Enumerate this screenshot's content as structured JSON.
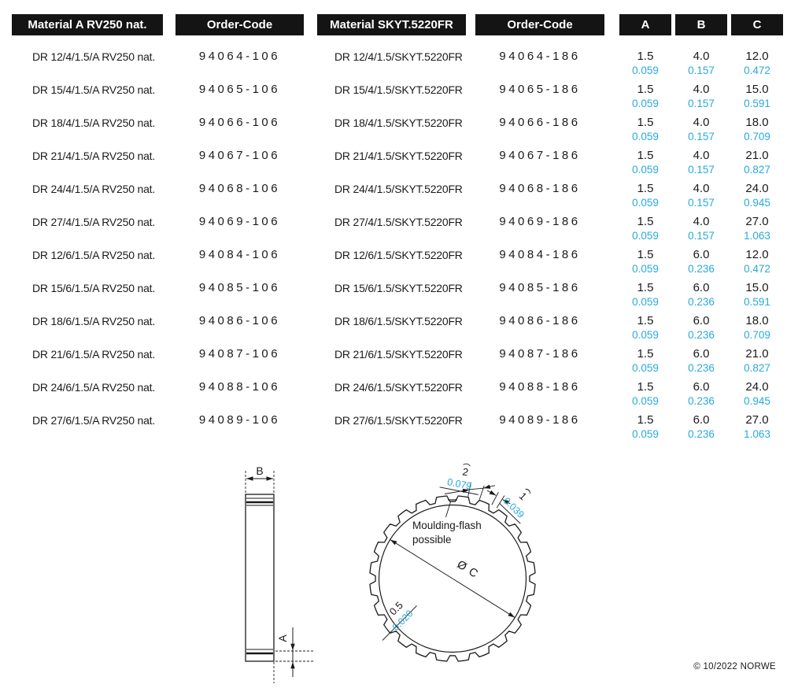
{
  "colors": {
    "accent_blue": "#29A9E0",
    "header_bg": "#141414",
    "ink": "#1A1A1A"
  },
  "table": {
    "headers": {
      "material_a": "Material A RV250 nat.",
      "order_code_a": "Order-Code",
      "material_b": "Material SKYT.5220FR",
      "order_code_b": "Order-Code",
      "dim_a": "A",
      "dim_b": "B",
      "dim_c": "C"
    },
    "rows": [
      {
        "material_a": "DR 12/4/1.5/A RV250 nat.",
        "order_a": "94064-106",
        "material_b": "DR 12/4/1.5/SKYT.5220FR",
        "order_b": "94064-186",
        "a_mm": "1.5",
        "a_in": "0.059",
        "b_mm": "4.0",
        "b_in": "0.157",
        "c_mm": "12.0",
        "c_in": "0.472"
      },
      {
        "material_a": "DR 15/4/1.5/A RV250 nat.",
        "order_a": "94065-106",
        "material_b": "DR 15/4/1.5/SKYT.5220FR",
        "order_b": "94065-186",
        "a_mm": "1.5",
        "a_in": "0.059",
        "b_mm": "4.0",
        "b_in": "0.157",
        "c_mm": "15.0",
        "c_in": "0.591"
      },
      {
        "material_a": "DR 18/4/1.5/A RV250 nat.",
        "order_a": "94066-106",
        "material_b": "DR 18/4/1.5/SKYT.5220FR",
        "order_b": "94066-186",
        "a_mm": "1.5",
        "a_in": "0.059",
        "b_mm": "4.0",
        "b_in": "0.157",
        "c_mm": "18.0",
        "c_in": "0.709"
      },
      {
        "material_a": "DR 21/4/1.5/A RV250 nat.",
        "order_a": "94067-106",
        "material_b": "DR 21/4/1.5/SKYT.5220FR",
        "order_b": "94067-186",
        "a_mm": "1.5",
        "a_in": "0.059",
        "b_mm": "4.0",
        "b_in": "0.157",
        "c_mm": "21.0",
        "c_in": "0.827"
      },
      {
        "material_a": "DR 24/4/1.5/A RV250 nat.",
        "order_a": "94068-106",
        "material_b": "DR 24/4/1.5/SKYT.5220FR",
        "order_b": "94068-186",
        "a_mm": "1.5",
        "a_in": "0.059",
        "b_mm": "4.0",
        "b_in": "0.157",
        "c_mm": "24.0",
        "c_in": "0.945"
      },
      {
        "material_a": "DR 27/4/1.5/A RV250 nat.",
        "order_a": "94069-106",
        "material_b": "DR 27/4/1.5/SKYT.5220FR",
        "order_b": "94069-186",
        "a_mm": "1.5",
        "a_in": "0.059",
        "b_mm": "4.0",
        "b_in": "0.157",
        "c_mm": "27.0",
        "c_in": "1.063"
      },
      {
        "material_a": "DR 12/6/1.5/A RV250 nat.",
        "order_a": "94084-106",
        "material_b": "DR 12/6/1.5/SKYT.5220FR",
        "order_b": "94084-186",
        "a_mm": "1.5",
        "a_in": "0.059",
        "b_mm": "6.0",
        "b_in": "0.236",
        "c_mm": "12.0",
        "c_in": "0.472"
      },
      {
        "material_a": "DR 15/6/1.5/A RV250 nat.",
        "order_a": "94085-106",
        "material_b": "DR 15/6/1.5/SKYT.5220FR",
        "order_b": "94085-186",
        "a_mm": "1.5",
        "a_in": "0.059",
        "b_mm": "6.0",
        "b_in": "0.236",
        "c_mm": "15.0",
        "c_in": "0.591"
      },
      {
        "material_a": "DR 18/6/1.5/A RV250 nat.",
        "order_a": "94086-106",
        "material_b": "DR 18/6/1.5/SKYT.5220FR",
        "order_b": "94086-186",
        "a_mm": "1.5",
        "a_in": "0.059",
        "b_mm": "6.0",
        "b_in": "0.236",
        "c_mm": "18.0",
        "c_in": "0.709"
      },
      {
        "material_a": "DR 21/6/1.5/A RV250 nat.",
        "order_a": "94087-106",
        "material_b": "DR 21/6/1.5/SKYT.5220FR",
        "order_b": "94087-186",
        "a_mm": "1.5",
        "a_in": "0.059",
        "b_mm": "6.0",
        "b_in": "0.236",
        "c_mm": "21.0",
        "c_in": "0.827"
      },
      {
        "material_a": "DR 24/6/1.5/A RV250 nat.",
        "order_a": "94088-106",
        "material_b": "DR 24/6/1.5/SKYT.5220FR",
        "order_b": "94088-186",
        "a_mm": "1.5",
        "a_in": "0.059",
        "b_mm": "6.0",
        "b_in": "0.236",
        "c_mm": "24.0",
        "c_in": "0.945"
      },
      {
        "material_a": "DR 27/6/1.5/A RV250 nat.",
        "order_a": "94089-106",
        "material_b": "DR 27/6/1.5/SKYT.5220FR",
        "order_b": "94089-186",
        "a_mm": "1.5",
        "a_in": "0.059",
        "b_mm": "6.0",
        "b_in": "0.236",
        "c_mm": "27.0",
        "c_in": "1.063"
      }
    ]
  },
  "drawing": {
    "side_view": {
      "width_label": "B",
      "bottom_label": "A"
    },
    "gear_view": {
      "tooth_width_mm": "2",
      "tooth_width_in": "0.079",
      "tooth_gap_mm": "1",
      "tooth_gap_in": "0.039",
      "note_line1": "Moulding-flash",
      "note_line2": "possible",
      "diameter_label": "Ø C",
      "wall_mm": "0.5",
      "wall_in": "0.020"
    }
  },
  "footer": {
    "copyright": "© 10/2022 NORWE"
  }
}
